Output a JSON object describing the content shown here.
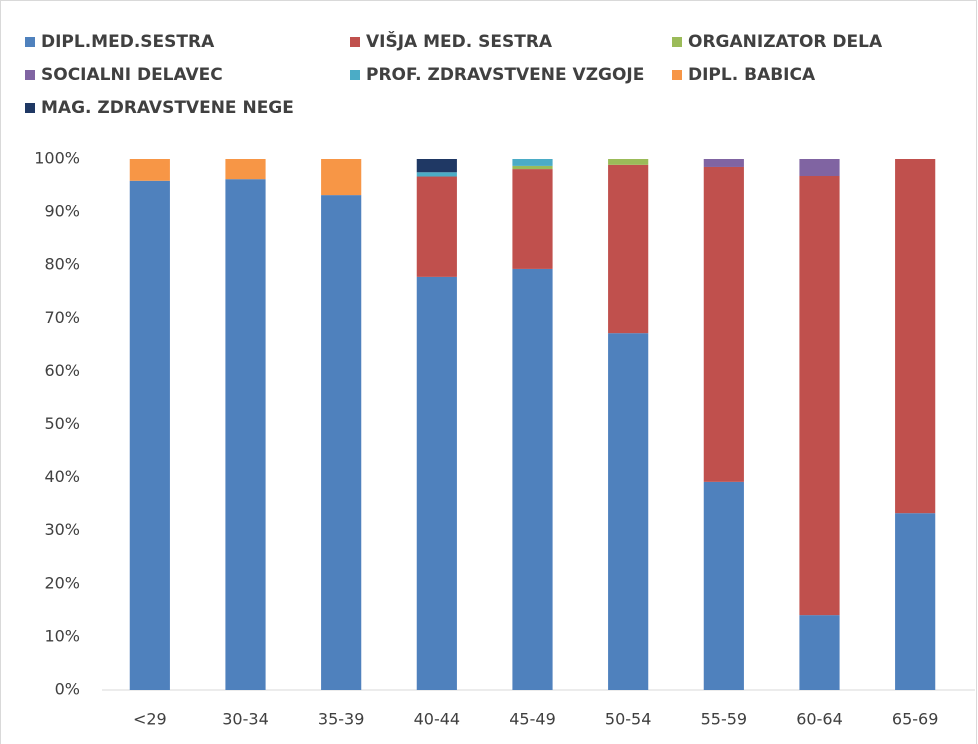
{
  "chart_data": {
    "type": "stacked_bar",
    "categories": [
      "<29",
      "30-34",
      "35-39",
      "40-44",
      "45-49",
      "50-54",
      "55-59",
      "60-64",
      "65-69"
    ],
    "series": [
      {
        "name": "DIPL.MED.SESTRA",
        "color": "#4f81bd",
        "values": [
          95.9,
          96.2,
          93.2,
          77.8,
          79.3,
          67.2,
          39.2,
          14.1,
          33.3
        ]
      },
      {
        "name": "VIŠJA MED. SESTRA",
        "color": "#c0504d",
        "values": [
          0,
          0,
          0,
          18.9,
          18.8,
          31.7,
          59.3,
          82.7,
          66.7
        ]
      },
      {
        "name": "ORGANIZATOR DELA",
        "color": "#9bbb59",
        "values": [
          0,
          0,
          0,
          0,
          0.6,
          1.1,
          0,
          0,
          0
        ]
      },
      {
        "name": "SOCIALNI DELAVEC",
        "color": "#8064a2",
        "values": [
          0,
          0,
          0,
          0,
          0,
          0,
          1.5,
          3.2,
          0
        ]
      },
      {
        "name": "PROF. ZDRAVSTVENE VZGOJE",
        "color": "#4bacc6",
        "values": [
          0,
          0,
          0,
          0.8,
          1.3,
          0,
          0,
          0,
          0
        ]
      },
      {
        "name": "DIPL. BABICA",
        "color": "#f79646",
        "values": [
          4.1,
          3.8,
          6.8,
          0,
          0,
          0,
          0,
          0,
          0
        ]
      },
      {
        "name": "MAG. ZDRAVSTVENE NEGE",
        "color": "#1f3864",
        "values": [
          0,
          0,
          0,
          2.5,
          0,
          0,
          0,
          0,
          0
        ]
      }
    ],
    "ylim": [
      0,
      100
    ],
    "yticks": [
      {
        "value": 0,
        "label": "0%"
      },
      {
        "value": 10,
        "label": "10%"
      },
      {
        "value": 20,
        "label": "20%"
      },
      {
        "value": 30,
        "label": "30%"
      },
      {
        "value": 40,
        "label": "40%"
      },
      {
        "value": 50,
        "label": "50%"
      },
      {
        "value": 60,
        "label": "60%"
      },
      {
        "value": 70,
        "label": "70%"
      },
      {
        "value": 80,
        "label": "80%"
      },
      {
        "value": 90,
        "label": "90%"
      },
      {
        "value": 100,
        "label": "100%"
      }
    ],
    "grid": false,
    "legend": "top"
  }
}
